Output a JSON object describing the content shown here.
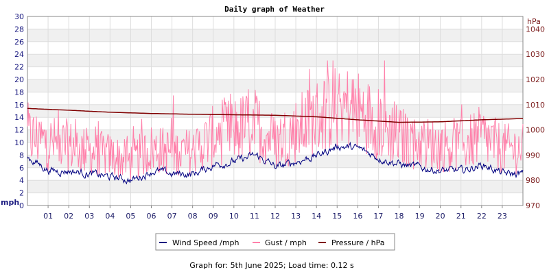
{
  "chart_data": {
    "type": "line",
    "title": "Daily graph of Weather",
    "footer": "Graph for: 5th June 2025; Load time: 0.12 s",
    "grid": true,
    "legend_position": "bottom",
    "x_axis": {
      "ticks": [
        "01",
        "02",
        "03",
        "04",
        "05",
        "06",
        "07",
        "08",
        "09",
        "10",
        "11",
        "12",
        "13",
        "14",
        "15",
        "16",
        "17",
        "18",
        "19",
        "20",
        "21",
        "22",
        "23"
      ],
      "range_hours": [
        0,
        24
      ]
    },
    "y_left": {
      "unit": "mph",
      "range": [
        0,
        30
      ],
      "ticks": [
        "0",
        "2",
        "4",
        "6",
        "8",
        "10",
        "12",
        "14",
        "16",
        "18",
        "20",
        "22",
        "24",
        "26",
        "28",
        "30"
      ]
    },
    "y_right": {
      "unit": "hPa",
      "range": [
        970,
        1045
      ],
      "ticks": [
        "970",
        "980",
        "990",
        "1000",
        "1010",
        "1020",
        "1030",
        "1040"
      ]
    },
    "series": [
      {
        "name": "Wind Speed /mph",
        "color": "#000080",
        "axis": "left",
        "x_hours": [
          0,
          1,
          2,
          3,
          4,
          5,
          6,
          7,
          8,
          9,
          10,
          11,
          12,
          13,
          14,
          15,
          16,
          17,
          18,
          19,
          20,
          21,
          22,
          23,
          24
        ],
        "values": [
          7.5,
          5.5,
          5.5,
          5,
          4.5,
          4,
          5.5,
          5,
          5,
          6.5,
          7,
          8,
          6,
          7,
          8,
          9.5,
          9,
          7.5,
          6.5,
          6,
          5.5,
          5.5,
          6.5,
          5,
          5
        ]
      },
      {
        "name": "Gust / mph",
        "color": "#ff80aa",
        "axis": "left",
        "x_hours": [
          0,
          1,
          2,
          3,
          4,
          5,
          6,
          7,
          8,
          9,
          10,
          11,
          12,
          13,
          14,
          15,
          16,
          17,
          18,
          19,
          20,
          21,
          22,
          23,
          24
        ],
        "values": [
          11,
          10,
          9.5,
          8.5,
          8,
          7,
          9,
          8.5,
          8.5,
          11,
          12,
          13,
          10,
          12,
          14,
          16,
          15,
          13,
          11,
          10,
          9.5,
          9.5,
          11,
          9,
          9
        ],
        "peak_max": 23
      },
      {
        "name": "Pressure / hPa",
        "color": "#800000",
        "axis": "right",
        "x_hours": [
          0,
          2,
          4,
          6,
          8,
          10,
          12,
          14,
          16,
          18,
          20,
          22,
          24
        ],
        "values": [
          1008.5,
          1007.8,
          1007,
          1006.5,
          1006.2,
          1006,
          1005.8,
          1005.2,
          1004,
          1003,
          1003.2,
          1004,
          1004.5
        ]
      }
    ]
  }
}
